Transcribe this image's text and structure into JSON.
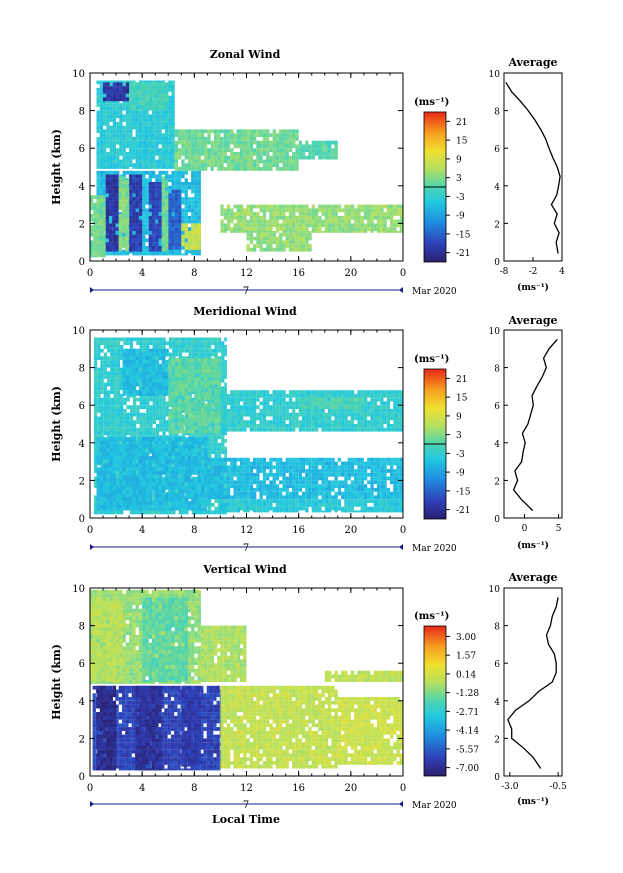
{
  "figure": {
    "date_label": "Mar 2020",
    "day_label": "7",
    "bottom_xlabel": "Local Time",
    "unit_label": "(ms⁻¹)"
  },
  "chart_data": [
    {
      "type": "heatmap",
      "title": "Zonal Wind",
      "ylabel": "Height (km)",
      "xlabel": "",
      "x_ticks": [
        "0",
        "4",
        "8",
        "12",
        "16",
        "20",
        "0"
      ],
      "y_ticks": [
        "0",
        "2",
        "4",
        "6",
        "8",
        "10"
      ],
      "xlim": [
        0,
        24
      ],
      "ylim": [
        0,
        10
      ],
      "colorbar": {
        "label": "(ms⁻¹)",
        "ticks": [
          "21",
          "15",
          "9",
          "3",
          "-3",
          "-9",
          "-15",
          "-21"
        ],
        "range": [
          -24,
          24
        ]
      },
      "regions": [
        {
          "x": [
            0.5,
            8.5
          ],
          "y": [
            0.3,
            4.8
          ],
          "value": -6
        },
        {
          "x": [
            1.2,
            2.2
          ],
          "y": [
            0.5,
            4.6
          ],
          "value": -20
        },
        {
          "x": [
            3.0,
            4.0
          ],
          "y": [
            0.5,
            4.6
          ],
          "value": -19
        },
        {
          "x": [
            4.5,
            5.5
          ],
          "y": [
            0.5,
            4.2
          ],
          "value": -18
        },
        {
          "x": [
            6.0,
            7.0
          ],
          "y": [
            0.6,
            3.8
          ],
          "value": -15
        },
        {
          "x": [
            2.2,
            3.0
          ],
          "y": [
            0.5,
            4.5
          ],
          "value": 3
        },
        {
          "x": [
            5.5,
            6.0
          ],
          "y": [
            0.5,
            4.5
          ],
          "value": 2
        },
        {
          "x": [
            7.0,
            8.5
          ],
          "y": [
            0.6,
            2.0
          ],
          "value": 8
        },
        {
          "x": [
            0.5,
            6.5
          ],
          "y": [
            4.9,
            9.6
          ],
          "value": -4
        },
        {
          "x": [
            1.0,
            3.0
          ],
          "y": [
            8.5,
            9.5
          ],
          "value": -20
        },
        {
          "x": [
            3.0,
            6.0
          ],
          "y": [
            8.0,
            9.5
          ],
          "value": -1
        },
        {
          "x": [
            6.5,
            16.0
          ],
          "y": [
            4.8,
            7.0
          ],
          "value": 2
        },
        {
          "x": [
            16.0,
            19.0
          ],
          "y": [
            5.4,
            6.4
          ],
          "value": 0
        },
        {
          "x": [
            10.0,
            24.0
          ],
          "y": [
            1.5,
            3.0
          ],
          "value": 4
        },
        {
          "x": [
            12.0,
            17.0
          ],
          "y": [
            0.5,
            1.5
          ],
          "value": 4
        },
        {
          "x": [
            0.0,
            1.2
          ],
          "y": [
            0.2,
            3.5
          ],
          "value": 2
        }
      ],
      "average_profile": {
        "title": "Average",
        "xlabel": "(ms⁻¹)",
        "x_ticks": [
          "-8",
          "-2",
          "4"
        ],
        "xlim": [
          -8,
          4
        ],
        "height": [
          0.4,
          1.0,
          1.5,
          2.0,
          2.5,
          3.0,
          3.5,
          4.0,
          4.5,
          5.0,
          5.5,
          6.0,
          6.5,
          7.0,
          7.5,
          8.0,
          8.5,
          9.0,
          9.5
        ],
        "values": [
          3.2,
          2.8,
          3.4,
          2.4,
          3.0,
          1.8,
          2.9,
          3.3,
          3.6,
          3.0,
          2.1,
          1.3,
          0.6,
          -0.4,
          -1.6,
          -3.0,
          -4.6,
          -6.4,
          -7.6
        ]
      }
    },
    {
      "type": "heatmap",
      "title": "Meridional Wind",
      "ylabel": "Height (km)",
      "xlabel": "",
      "x_ticks": [
        "0",
        "4",
        "8",
        "12",
        "16",
        "20",
        "0"
      ],
      "y_ticks": [
        "0",
        "2",
        "4",
        "6",
        "8",
        "10"
      ],
      "xlim": [
        0,
        24
      ],
      "ylim": [
        0,
        10
      ],
      "colorbar": {
        "label": "(ms⁻¹)",
        "ticks": [
          "21",
          "15",
          "9",
          "3",
          "-3",
          "-9",
          "-15",
          "-21"
        ],
        "range": [
          -24,
          24
        ]
      },
      "regions": [
        {
          "x": [
            0.3,
            10.5
          ],
          "y": [
            0.2,
            9.6
          ],
          "value": -3
        },
        {
          "x": [
            0.5,
            9.0
          ],
          "y": [
            0.4,
            4.3
          ],
          "value": -6
        },
        {
          "x": [
            2.5,
            6.0
          ],
          "y": [
            6.5,
            9.0
          ],
          "value": -6
        },
        {
          "x": [
            6.0,
            10.0
          ],
          "y": [
            4.5,
            8.5
          ],
          "value": 1
        },
        {
          "x": [
            9.0,
            24.0
          ],
          "y": [
            1.0,
            3.2
          ],
          "value": -6
        },
        {
          "x": [
            10.0,
            24.0
          ],
          "y": [
            0.3,
            1.0
          ],
          "value": -4
        },
        {
          "x": [
            10.0,
            24.0
          ],
          "y": [
            4.6,
            6.8
          ],
          "value": -3
        },
        {
          "x": [
            16.0,
            21.0
          ],
          "y": [
            5.8,
            6.4
          ],
          "value": 0
        }
      ],
      "average_profile": {
        "title": "Average",
        "xlabel": "(ms⁻¹)",
        "x_ticks": [
          "0",
          "5"
        ],
        "xlim": [
          -3,
          5.5
        ],
        "height": [
          0.4,
          1.0,
          1.5,
          2.0,
          2.5,
          3.0,
          3.5,
          4.0,
          4.5,
          5.0,
          5.5,
          6.0,
          6.5,
          7.0,
          7.5,
          8.0,
          8.5,
          9.0,
          9.5
        ],
        "values": [
          1.2,
          -0.5,
          -1.6,
          -1.0,
          -1.4,
          -0.4,
          -0.2,
          0.1,
          -0.3,
          0.5,
          0.9,
          1.3,
          1.1,
          1.8,
          2.6,
          3.2,
          2.8,
          3.6,
          4.8
        ]
      }
    },
    {
      "type": "heatmap",
      "title": "Vertical Wind",
      "ylabel": "Height (km)",
      "xlabel": "Local Time",
      "x_ticks": [
        "0",
        "4",
        "8",
        "12",
        "16",
        "20",
        "0"
      ],
      "y_ticks": [
        "0",
        "2",
        "4",
        "6",
        "8",
        "10"
      ],
      "xlim": [
        0,
        24
      ],
      "ylim": [
        0,
        10
      ],
      "colorbar": {
        "label": "(ms⁻¹)",
        "ticks": [
          "3.00",
          "1.57",
          "0.14",
          "-1.28",
          "-2.71",
          "-4.14",
          "-5.57",
          "-7.00"
        ],
        "range": [
          -8.0,
          4.0
        ]
      },
      "regions": [
        {
          "x": [
            0.2,
            10.0
          ],
          "y": [
            0.3,
            4.8
          ],
          "value": -6.5
        },
        {
          "x": [
            0.5,
            2.0
          ],
          "y": [
            0.3,
            4.8
          ],
          "value": -7.4
        },
        {
          "x": [
            3.5,
            5.5
          ],
          "y": [
            0.3,
            4.8
          ],
          "value": -7.2
        },
        {
          "x": [
            7.0,
            8.5
          ],
          "y": [
            0.5,
            4.8
          ],
          "value": -6.8
        },
        {
          "x": [
            0.0,
            8.5
          ],
          "y": [
            4.9,
            9.9
          ],
          "value": -1.0
        },
        {
          "x": [
            0.0,
            2.5
          ],
          "y": [
            5.0,
            9.5
          ],
          "value": -0.4
        },
        {
          "x": [
            4.0,
            7.5
          ],
          "y": [
            5.0,
            9.5
          ],
          "value": -1.8
        },
        {
          "x": [
            8.5,
            12.0
          ],
          "y": [
            5.0,
            8.0
          ],
          "value": -0.6
        },
        {
          "x": [
            10.0,
            19.0
          ],
          "y": [
            0.4,
            4.8
          ],
          "value": -0.2
        },
        {
          "x": [
            19.0,
            24.0
          ],
          "y": [
            0.6,
            4.2
          ],
          "value": 0.0
        },
        {
          "x": [
            18.0,
            24.0
          ],
          "y": [
            5.0,
            5.6
          ],
          "value": -0.3
        }
      ],
      "average_profile": {
        "title": "Average",
        "xlabel": "(ms⁻¹)",
        "x_ticks": [
          "-3.0",
          "-0.5"
        ],
        "xlim": [
          -3.3,
          -0.3
        ],
        "height": [
          0.4,
          1.0,
          1.5,
          2.0,
          2.5,
          3.0,
          3.5,
          4.0,
          4.5,
          5.0,
          5.5,
          6.0,
          6.5,
          7.0,
          7.5,
          8.0,
          8.5,
          9.0,
          9.5
        ],
        "values": [
          -1.4,
          -1.8,
          -2.3,
          -2.9,
          -2.9,
          -3.1,
          -2.7,
          -2.0,
          -1.5,
          -0.8,
          -0.6,
          -0.6,
          -0.7,
          -1.0,
          -1.1,
          -0.9,
          -0.8,
          -0.6,
          -0.5
        ]
      }
    }
  ]
}
